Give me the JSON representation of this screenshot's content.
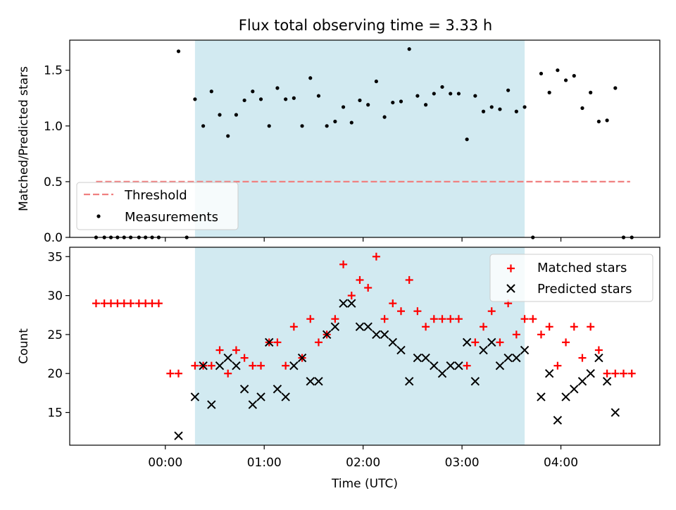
{
  "title": "Flux total observing time = 3.33 h",
  "colors": {
    "shade": "#add8e6",
    "threshold": "#f08080",
    "measurement": "#000000",
    "matched": "#ff0000",
    "predicted": "#000000"
  },
  "chart_data": [
    {
      "type": "scatter",
      "ylabel": "Matched/Predicted stars",
      "ylim": [
        0,
        1.77
      ],
      "xlim_minutes": [
        -58,
        300
      ],
      "yticks": [
        {
          "v": 0,
          "label": "0.0"
        },
        {
          "v": 0.5,
          "label": "0.5"
        },
        {
          "v": 1.0,
          "label": "1.0"
        },
        {
          "v": 1.5,
          "label": "1.5"
        }
      ],
      "shaded_span_minutes": [
        18,
        218
      ],
      "threshold": {
        "value": 0.5,
        "x_minutes": [
          -42,
          282
        ],
        "label": "Threshold"
      },
      "legend": {
        "placement": "lower-left",
        "entries": [
          "Threshold",
          "Measurements"
        ]
      },
      "series": [
        {
          "name": "Measurements",
          "x_minutes": [
            -42,
            -37,
            -33,
            -29,
            -25,
            -21,
            -16,
            -12,
            -8,
            -4,
            8,
            13,
            18,
            23,
            28,
            33,
            38,
            43,
            48,
            53,
            58,
            63,
            68,
            73,
            78,
            83,
            88,
            93,
            98,
            103,
            108,
            113,
            118,
            123,
            128,
            133,
            138,
            143,
            148,
            153,
            158,
            163,
            168,
            173,
            178,
            183,
            188,
            193,
            198,
            203,
            208,
            213,
            218,
            223,
            228,
            233,
            238,
            243,
            248,
            253,
            258,
            263,
            268,
            273,
            278,
            283
          ],
          "y": [
            0,
            0,
            0,
            0,
            0,
            0,
            0,
            0,
            0,
            0,
            1.67,
            0,
            1.24,
            1.0,
            1.31,
            1.1,
            0.91,
            1.1,
            1.23,
            1.31,
            1.24,
            1.0,
            1.34,
            1.24,
            1.25,
            1.0,
            1.43,
            1.27,
            1.0,
            1.04,
            1.17,
            1.03,
            1.23,
            1.19,
            1.4,
            1.08,
            1.21,
            1.22,
            1.69,
            1.27,
            1.19,
            1.29,
            1.35,
            1.29,
            1.29,
            0.88,
            1.27,
            1.13,
            1.17,
            1.15,
            1.32,
            1.13,
            1.17,
            0,
            1.47,
            1.3,
            1.5,
            1.41,
            1.45,
            1.16,
            1.3,
            1.04,
            1.05,
            1.34,
            0,
            0
          ]
        }
      ]
    },
    {
      "type": "scatter",
      "xlabel": "Time (UTC)",
      "ylabel": "Count",
      "ylim": [
        10.8,
        36.2
      ],
      "xlim_minutes": [
        -58,
        300
      ],
      "xticks": [
        {
          "v": 0,
          "label": "00:00"
        },
        {
          "v": 60,
          "label": "01:00"
        },
        {
          "v": 120,
          "label": "02:00"
        },
        {
          "v": 180,
          "label": "03:00"
        },
        {
          "v": 240,
          "label": "04:00"
        }
      ],
      "yticks": [
        {
          "v": 15,
          "label": "15"
        },
        {
          "v": 20,
          "label": "20"
        },
        {
          "v": 25,
          "label": "25"
        },
        {
          "v": 30,
          "label": "30"
        },
        {
          "v": 35,
          "label": "35"
        }
      ],
      "shaded_span_minutes": [
        18,
        218
      ],
      "legend": {
        "placement": "upper-right",
        "entries": [
          "Matched stars",
          "Predicted stars"
        ]
      },
      "series": [
        {
          "name": "Matched stars",
          "x_minutes": [
            -42,
            -37,
            -33,
            -29,
            -25,
            -21,
            -16,
            -12,
            -8,
            -4,
            3,
            8,
            18,
            23,
            28,
            33,
            38,
            43,
            48,
            53,
            58,
            63,
            68,
            73,
            78,
            83,
            88,
            93,
            98,
            103,
            108,
            113,
            118,
            123,
            128,
            133,
            138,
            143,
            148,
            153,
            158,
            163,
            168,
            173,
            178,
            183,
            188,
            193,
            198,
            203,
            208,
            213,
            218,
            223,
            228,
            233,
            238,
            243,
            248,
            253,
            258,
            263,
            268,
            273,
            278,
            283
          ],
          "y": [
            29,
            29,
            29,
            29,
            29,
            29,
            29,
            29,
            29,
            29,
            20,
            20,
            21,
            21,
            21,
            23,
            20,
            23,
            22,
            21,
            21,
            24,
            24,
            21,
            26,
            22,
            27,
            24,
            25,
            27,
            34,
            30,
            32,
            31,
            35,
            27,
            29,
            28,
            32,
            28,
            26,
            27,
            27,
            27,
            27,
            21,
            24,
            26,
            28,
            24,
            29,
            25,
            27,
            27,
            25,
            26,
            21,
            24,
            26,
            22,
            26,
            23,
            20,
            20,
            20,
            20
          ]
        },
        {
          "name": "Predicted stars",
          "x_minutes": [
            8,
            18,
            23,
            28,
            33,
            38,
            43,
            48,
            53,
            58,
            63,
            68,
            73,
            78,
            83,
            88,
            93,
            98,
            103,
            108,
            113,
            118,
            123,
            128,
            133,
            138,
            143,
            148,
            153,
            158,
            163,
            168,
            173,
            178,
            183,
            188,
            193,
            198,
            203,
            208,
            213,
            218,
            228,
            233,
            238,
            243,
            248,
            253,
            258,
            263,
            268,
            273
          ],
          "y": [
            12,
            17,
            21,
            16,
            21,
            22,
            21,
            18,
            16,
            17,
            24,
            18,
            17,
            21,
            22,
            19,
            19,
            25,
            26,
            29,
            29,
            26,
            26,
            25,
            25,
            24,
            23,
            19,
            22,
            22,
            21,
            20,
            21,
            21,
            24,
            19,
            23,
            24,
            21,
            22,
            22,
            23,
            17,
            20,
            14,
            17,
            18,
            19,
            20,
            22,
            19,
            15
          ]
        }
      ]
    }
  ]
}
